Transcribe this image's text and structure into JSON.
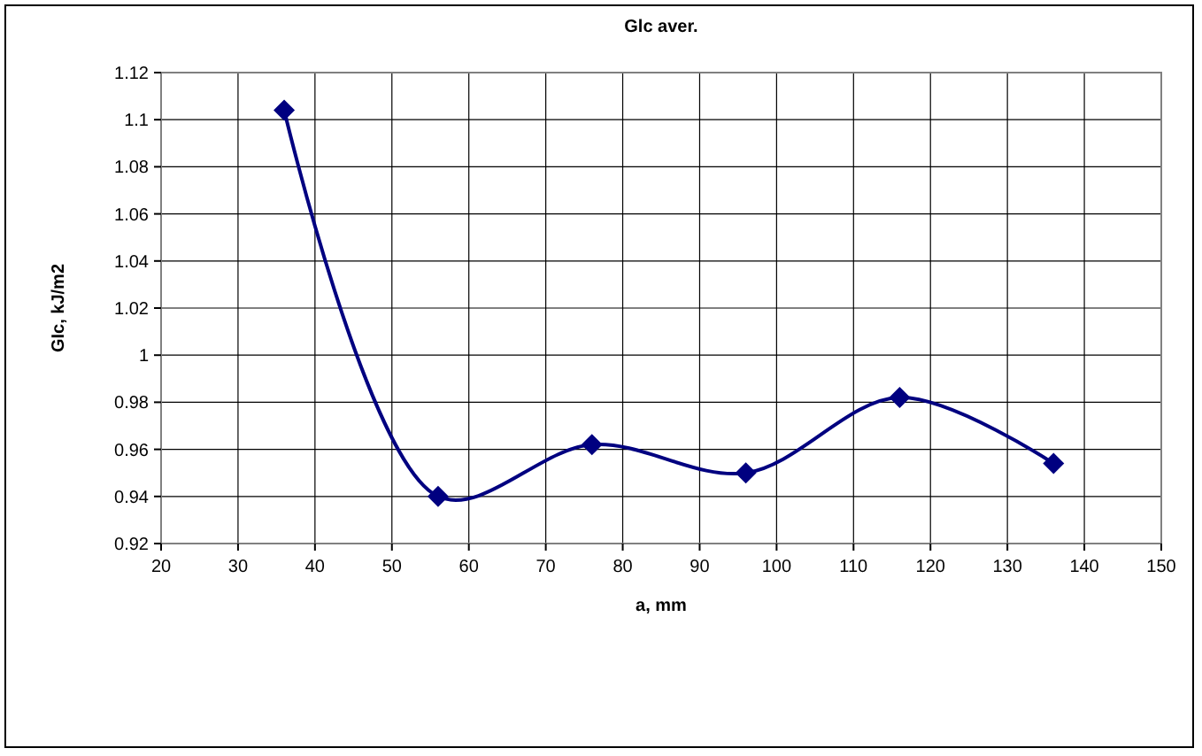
{
  "chart_data": {
    "type": "line",
    "title": "Glc aver.",
    "xlabel": "a, mm",
    "ylabel": "GIc,  kJ/m2",
    "x": [
      36,
      56,
      76,
      96,
      116,
      136
    ],
    "series": [
      {
        "color": "#000080",
        "values": [
          1.104,
          0.94,
          0.962,
          0.95,
          0.982,
          0.954
        ]
      }
    ],
    "xlim": [
      20,
      150
    ],
    "xticks": [
      20,
      30,
      40,
      50,
      60,
      70,
      80,
      90,
      100,
      110,
      120,
      130,
      140,
      150
    ],
    "ylim": [
      0.92,
      1.12
    ],
    "yticks": [
      {
        "value": 0.92,
        "label": "0.92"
      },
      {
        "value": 0.94,
        "label": "0.94"
      },
      {
        "value": 0.96,
        "label": "0.96"
      },
      {
        "value": 0.98,
        "label": "0.98"
      },
      {
        "value": 1,
        "label": "1"
      },
      {
        "value": 1.02,
        "label": "1.02"
      },
      {
        "value": 1.04,
        "label": "1.04"
      },
      {
        "value": 1.06,
        "label": "1.06"
      },
      {
        "value": 1.08,
        "label": "1.08"
      },
      {
        "value": 1.1,
        "label": "1.1"
      },
      {
        "value": 1.12,
        "label": "1.12"
      }
    ],
    "grid": true,
    "marker": "diamond",
    "line_style": "solid"
  }
}
